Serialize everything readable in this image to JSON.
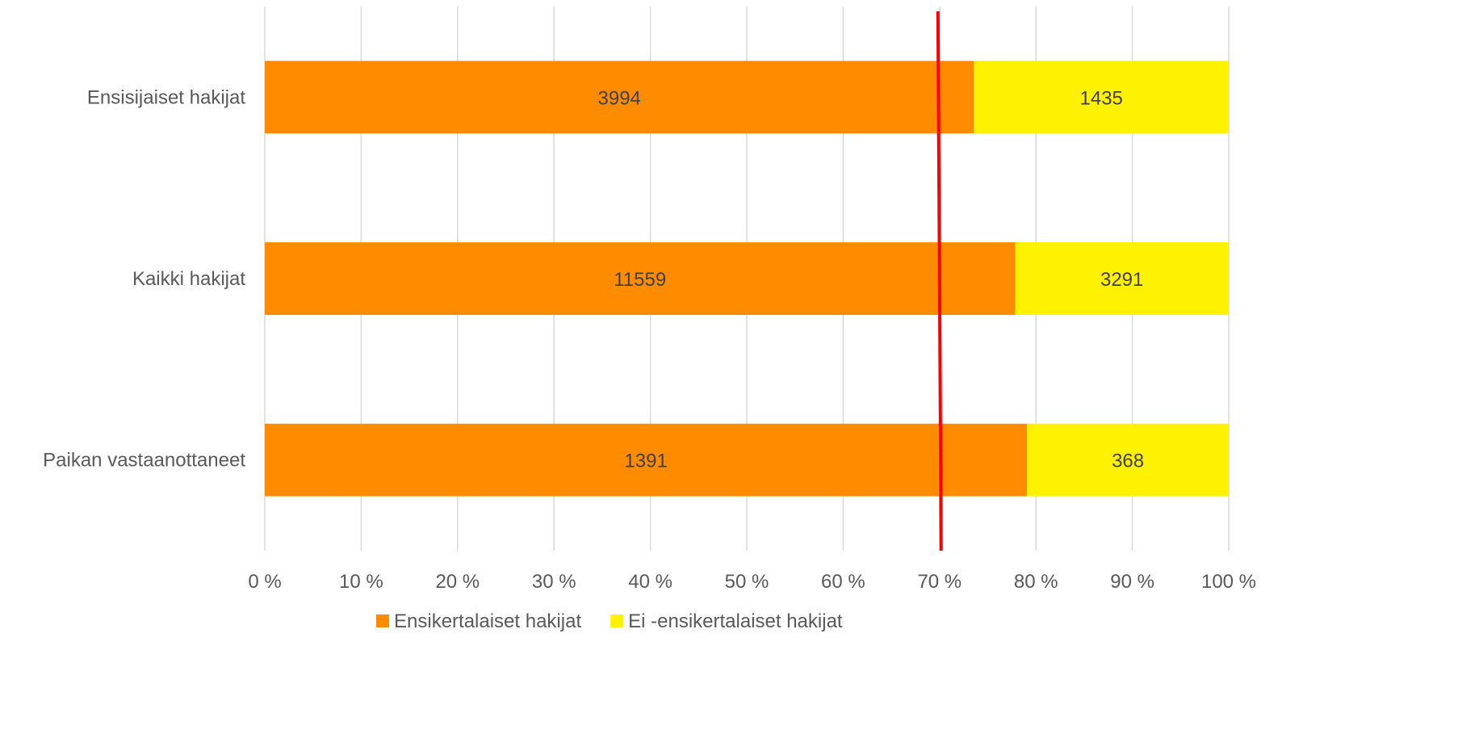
{
  "chart_data": {
    "type": "bar",
    "orientation": "horizontal",
    "stacking": "percent",
    "categories": [
      "Ensisijaiset hakijat",
      "Kaikki hakijat",
      "Paikan vastaanottaneet"
    ],
    "series": [
      {
        "name": "Ensikertalaiset hakijat",
        "color": "#FF8C00",
        "values": [
          3994,
          11559,
          1391
        ]
      },
      {
        "name": "Ei -ensikertalaiset hakijat",
        "color": "#FFF200",
        "values": [
          1435,
          3291,
          368
        ]
      }
    ],
    "x_ticks": [
      "0 %",
      "10 %",
      "20 %",
      "30 %",
      "40 %",
      "50 %",
      "60 %",
      "70 %",
      "80 %",
      "90 %",
      "100 %"
    ],
    "xlim": [
      0,
      100
    ],
    "reference_line": {
      "value": 70,
      "color": "#FF0000"
    },
    "grid": "vertical",
    "legend_position": "bottom",
    "title": "",
    "xlabel": "",
    "ylabel": ""
  }
}
